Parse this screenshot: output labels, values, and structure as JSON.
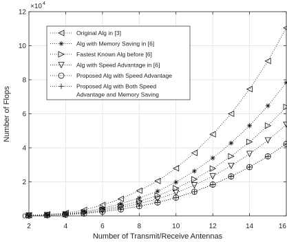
{
  "chart_data": {
    "type": "line",
    "xlabel": "Number of Transmit/Receive Antennas",
    "ylabel": "Number of Flops",
    "exponent_label": "×10",
    "exponent_power": "4",
    "xlim": [
      2,
      16
    ],
    "ylim": [
      0,
      12
    ],
    "y_scale": 10000,
    "xticks": [
      2,
      4,
      6,
      8,
      10,
      12,
      14,
      16
    ],
    "yticks": [
      0,
      2,
      4,
      6,
      8,
      10,
      12
    ],
    "grid": true,
    "legend_position": "top-left",
    "line_style": "dotted",
    "x": [
      2,
      3,
      4,
      5,
      6,
      7,
      8,
      9,
      10,
      11,
      12,
      13,
      14,
      15,
      16
    ],
    "series": [
      {
        "name": "Original Alg in [3]",
        "marker": "triangle-left",
        "values": [
          400,
          900,
          1700,
          3500,
          6400,
          10000,
          14800,
          20500,
          28000,
          37000,
          48000,
          60000,
          74500,
          91000,
          110500
        ]
      },
      {
        "name": "Alg with Memory Saving in [6]",
        "marker": "star",
        "values": [
          280,
          630,
          1200,
          2500,
          4500,
          7100,
          10500,
          14500,
          19800,
          26300,
          34000,
          42800,
          53000,
          64700,
          78300
        ]
      },
      {
        "name": "Fastest Known Alg before [6]",
        "marker": "triangle-right",
        "values": [
          230,
          520,
          980,
          2050,
          3700,
          5800,
          8600,
          11900,
          16200,
          21500,
          27800,
          35000,
          43500,
          53000,
          64000
        ]
      },
      {
        "name": "Alg with Speed Advantage in [6]",
        "marker": "triangle-down",
        "values": [
          200,
          440,
          830,
          1720,
          3100,
          4900,
          7200,
          10000,
          13600,
          18000,
          23300,
          29400,
          36400,
          44400,
          53600
        ]
      },
      {
        "name": "Proposed Alg with Speed Advantage",
        "marker": "circle",
        "values": [
          160,
          350,
          660,
          1370,
          2450,
          3850,
          5700,
          7900,
          10700,
          14200,
          18400,
          23200,
          28700,
          35000,
          42300
        ]
      },
      {
        "name": "Proposed Alg with Both Speed Advantage and Memory Saving",
        "legend_lines": [
          "Proposed Alg with Both Speed",
          "Advantage and Memory Saving"
        ],
        "marker": "plus",
        "values": [
          160,
          350,
          660,
          1370,
          2450,
          3850,
          5700,
          7900,
          10700,
          14200,
          18400,
          23200,
          28700,
          35000,
          42300
        ]
      }
    ]
  }
}
